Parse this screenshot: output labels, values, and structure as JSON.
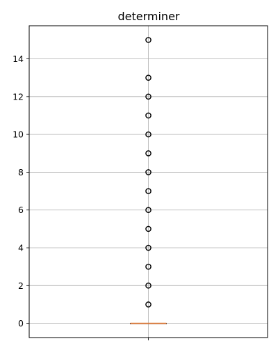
{
  "chart_data": {
    "type": "box",
    "title": "determiner",
    "xlabel": "",
    "ylabel": "",
    "ylim": [
      -0.75,
      15.75
    ],
    "yticks": [
      0,
      2,
      4,
      6,
      8,
      10,
      12,
      14
    ],
    "grid": true,
    "colors": {
      "median": "#e07b39",
      "grid": "#b0b0b0",
      "outlier": "#000000",
      "frame": "#000000"
    },
    "box": {
      "q1": 0,
      "median": 0,
      "q3": 0,
      "whisker_low": 0,
      "whisker_high": 0,
      "outliers": [
        1,
        2,
        3,
        4,
        5,
        6,
        7,
        8,
        9,
        10,
        11,
        12,
        13,
        15
      ]
    }
  }
}
